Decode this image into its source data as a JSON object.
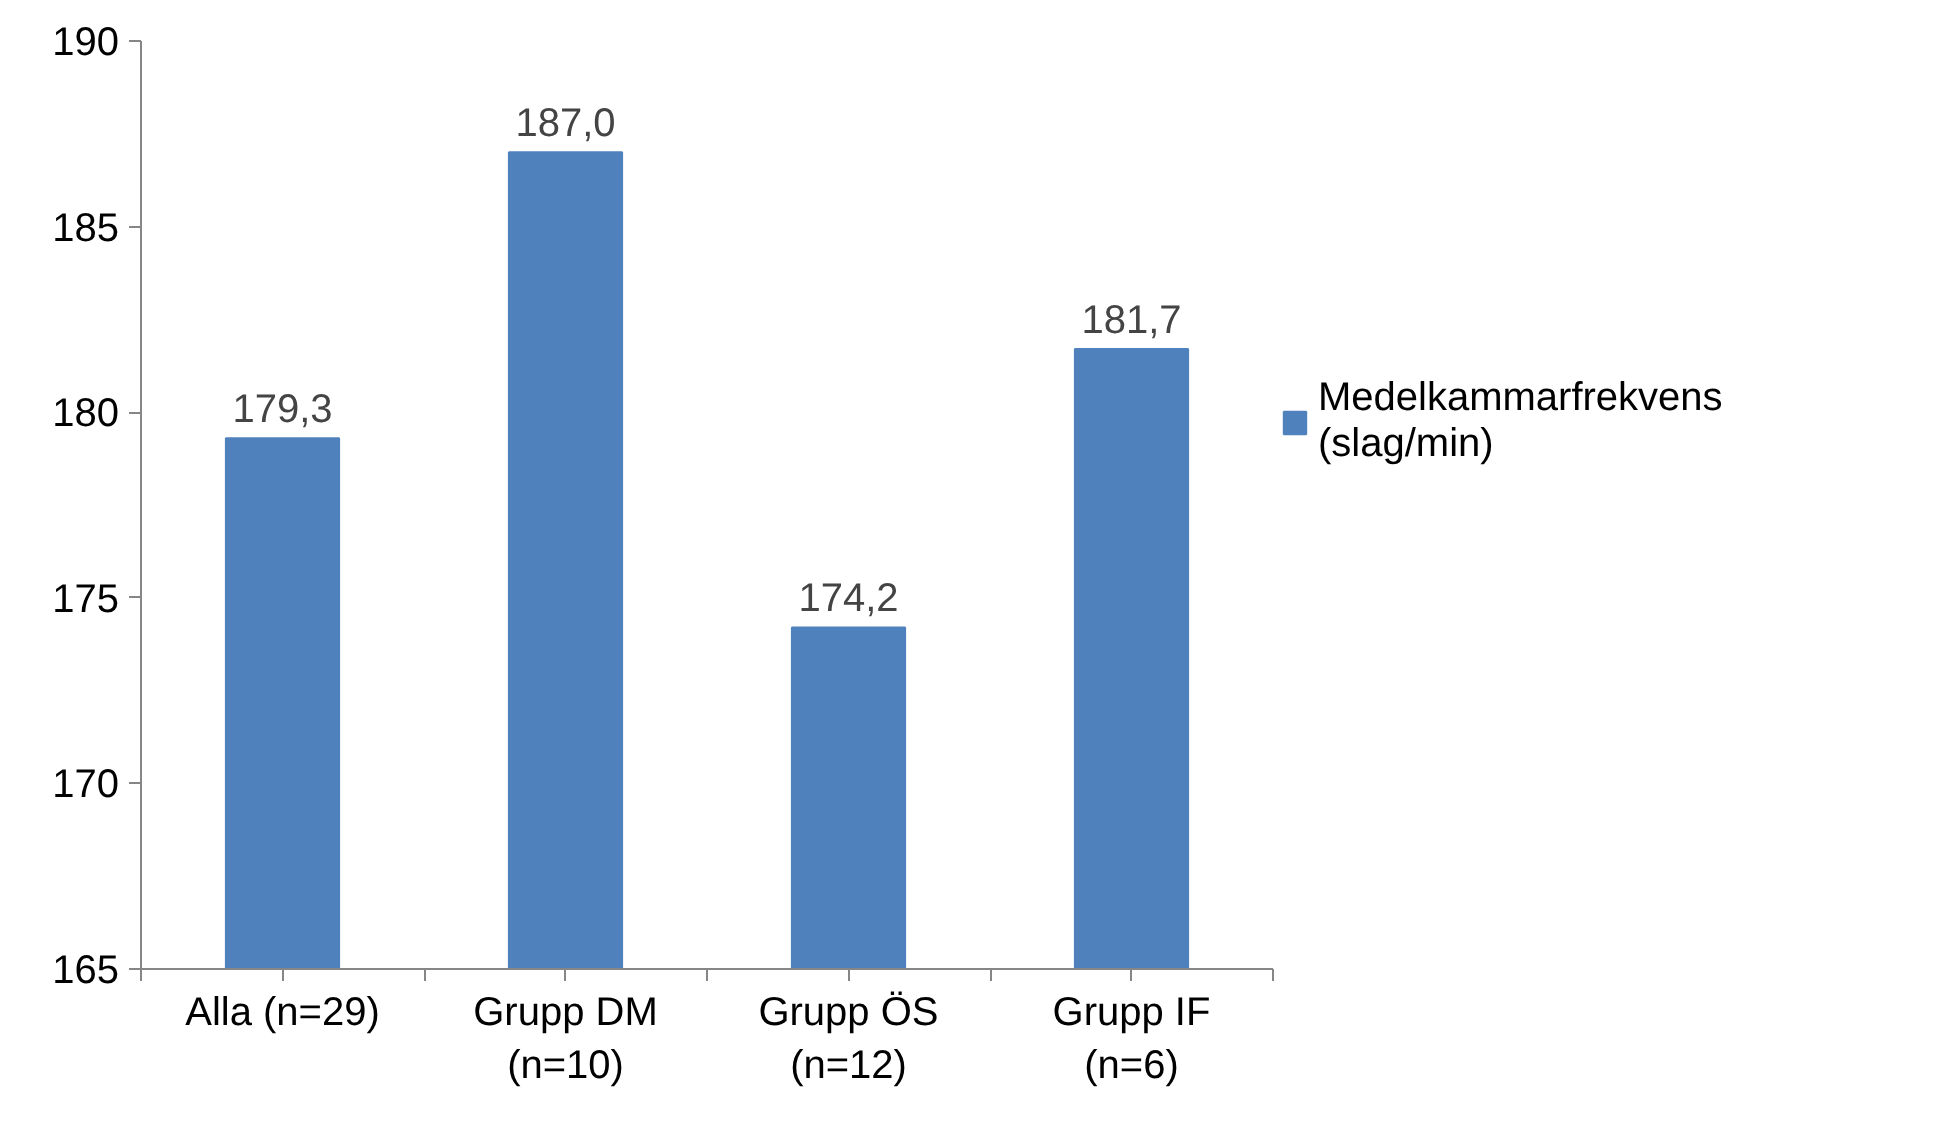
{
  "chart_data": {
    "type": "bar",
    "categories": [
      "Alla (n=29)",
      "Grupp DM (n=10)",
      "Grupp ÖS (n=12)",
      "Grupp IF (n=6)"
    ],
    "series": [
      {
        "name": "Medelkammarfrekvens (slag/min)",
        "color": "#4f81bd",
        "values": [
          179.3,
          187.0,
          174.2,
          181.7
        ],
        "value_labels": [
          "179,3",
          "187,0",
          "174,2",
          "181,7"
        ]
      }
    ],
    "ylim": [
      165,
      190
    ],
    "yticks": [
      165,
      170,
      175,
      180,
      185,
      190
    ],
    "grid": false,
    "legend": "right"
  }
}
